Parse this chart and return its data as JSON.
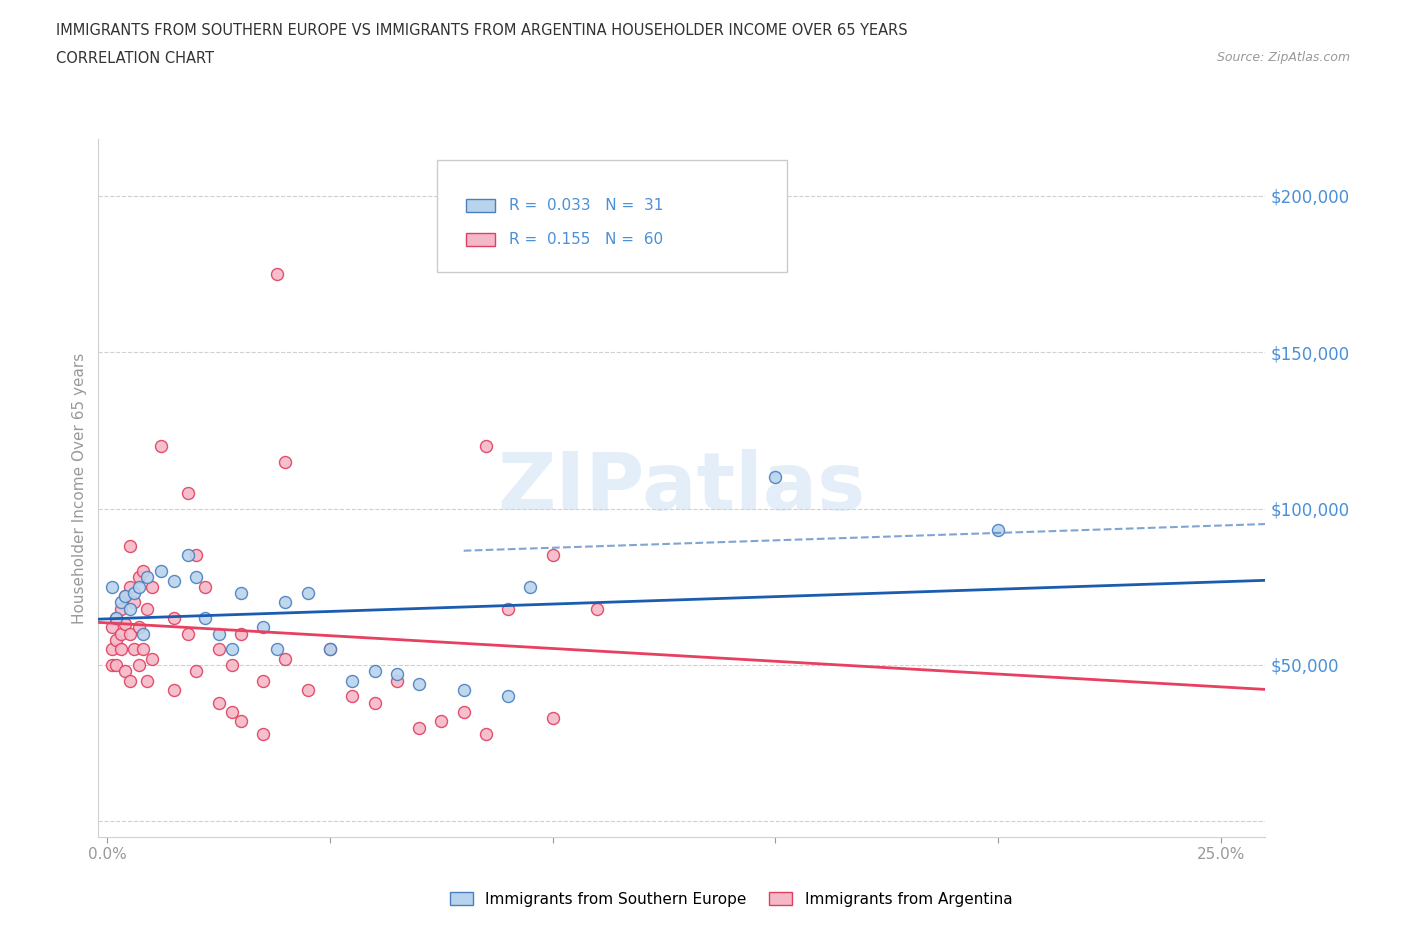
{
  "title_line1": "IMMIGRANTS FROM SOUTHERN EUROPE VS IMMIGRANTS FROM ARGENTINA HOUSEHOLDER INCOME OVER 65 YEARS",
  "title_line2": "CORRELATION CHART",
  "source_text": "Source: ZipAtlas.com",
  "ylabel": "Householder Income Over 65 years",
  "xlim": [
    -0.002,
    0.26
  ],
  "ylim": [
    -5000,
    218000
  ],
  "ytick_vals": [
    0,
    50000,
    100000,
    150000,
    200000
  ],
  "ytick_labels": [
    "",
    "$50,000",
    "$100,000",
    "$150,000",
    "$200,000"
  ],
  "xtick_vals": [
    0.0,
    0.05,
    0.1,
    0.15,
    0.2,
    0.25
  ],
  "xtick_labels": [
    "0.0%",
    "",
    "",
    "",
    "",
    "25.0%"
  ],
  "watermark": "ZIPatlas",
  "legend_blue_r": "0.033",
  "legend_blue_n": "31",
  "legend_pink_r": "0.155",
  "legend_pink_n": "60",
  "blue_face": "#b8d4ed",
  "blue_edge": "#4a7fc0",
  "pink_face": "#f5b8c8",
  "pink_edge": "#e04060",
  "blue_line": "#1a5cb0",
  "pink_line": "#e84060",
  "tick_label_color": "#4a90d9",
  "axis_color": "#999999",
  "grid_color": "#d0d0d0",
  "title_color": "#333333",
  "bg_color": "#ffffff",
  "blue_scatter": [
    [
      0.001,
      75000
    ],
    [
      0.002,
      65000
    ],
    [
      0.003,
      70000
    ],
    [
      0.004,
      72000
    ],
    [
      0.005,
      68000
    ],
    [
      0.006,
      73000
    ],
    [
      0.007,
      75000
    ],
    [
      0.009,
      78000
    ],
    [
      0.012,
      80000
    ],
    [
      0.015,
      77000
    ],
    [
      0.018,
      85000
    ],
    [
      0.02,
      78000
    ],
    [
      0.022,
      65000
    ],
    [
      0.025,
      60000
    ],
    [
      0.028,
      55000
    ],
    [
      0.03,
      73000
    ],
    [
      0.035,
      62000
    ],
    [
      0.038,
      55000
    ],
    [
      0.04,
      70000
    ],
    [
      0.045,
      73000
    ],
    [
      0.05,
      55000
    ],
    [
      0.055,
      45000
    ],
    [
      0.06,
      48000
    ],
    [
      0.065,
      47000
    ],
    [
      0.07,
      44000
    ],
    [
      0.08,
      42000
    ],
    [
      0.09,
      40000
    ],
    [
      0.095,
      75000
    ],
    [
      0.15,
      110000
    ],
    [
      0.2,
      93000
    ],
    [
      0.008,
      60000
    ]
  ],
  "pink_scatter": [
    [
      0.001,
      62000
    ],
    [
      0.001,
      55000
    ],
    [
      0.001,
      50000
    ],
    [
      0.002,
      65000
    ],
    [
      0.002,
      58000
    ],
    [
      0.002,
      50000
    ],
    [
      0.003,
      68000
    ],
    [
      0.003,
      60000
    ],
    [
      0.003,
      55000
    ],
    [
      0.004,
      72000
    ],
    [
      0.004,
      63000
    ],
    [
      0.004,
      48000
    ],
    [
      0.005,
      75000
    ],
    [
      0.005,
      60000
    ],
    [
      0.005,
      45000
    ],
    [
      0.006,
      70000
    ],
    [
      0.006,
      55000
    ],
    [
      0.007,
      78000
    ],
    [
      0.007,
      62000
    ],
    [
      0.007,
      50000
    ],
    [
      0.008,
      80000
    ],
    [
      0.008,
      55000
    ],
    [
      0.009,
      68000
    ],
    [
      0.009,
      45000
    ],
    [
      0.01,
      75000
    ],
    [
      0.01,
      52000
    ],
    [
      0.012,
      120000
    ],
    [
      0.015,
      65000
    ],
    [
      0.015,
      42000
    ],
    [
      0.018,
      105000
    ],
    [
      0.018,
      60000
    ],
    [
      0.02,
      85000
    ],
    [
      0.02,
      48000
    ],
    [
      0.022,
      75000
    ],
    [
      0.025,
      55000
    ],
    [
      0.025,
      38000
    ],
    [
      0.028,
      50000
    ],
    [
      0.028,
      35000
    ],
    [
      0.03,
      60000
    ],
    [
      0.03,
      32000
    ],
    [
      0.035,
      45000
    ],
    [
      0.035,
      28000
    ],
    [
      0.038,
      175000
    ],
    [
      0.04,
      115000
    ],
    [
      0.04,
      52000
    ],
    [
      0.045,
      42000
    ],
    [
      0.05,
      55000
    ],
    [
      0.055,
      40000
    ],
    [
      0.06,
      38000
    ],
    [
      0.065,
      45000
    ],
    [
      0.07,
      30000
    ],
    [
      0.075,
      32000
    ],
    [
      0.08,
      35000
    ],
    [
      0.085,
      28000
    ],
    [
      0.1,
      33000
    ],
    [
      0.085,
      120000
    ],
    [
      0.09,
      68000
    ],
    [
      0.1,
      85000
    ],
    [
      0.005,
      88000
    ],
    [
      0.11,
      68000
    ]
  ]
}
